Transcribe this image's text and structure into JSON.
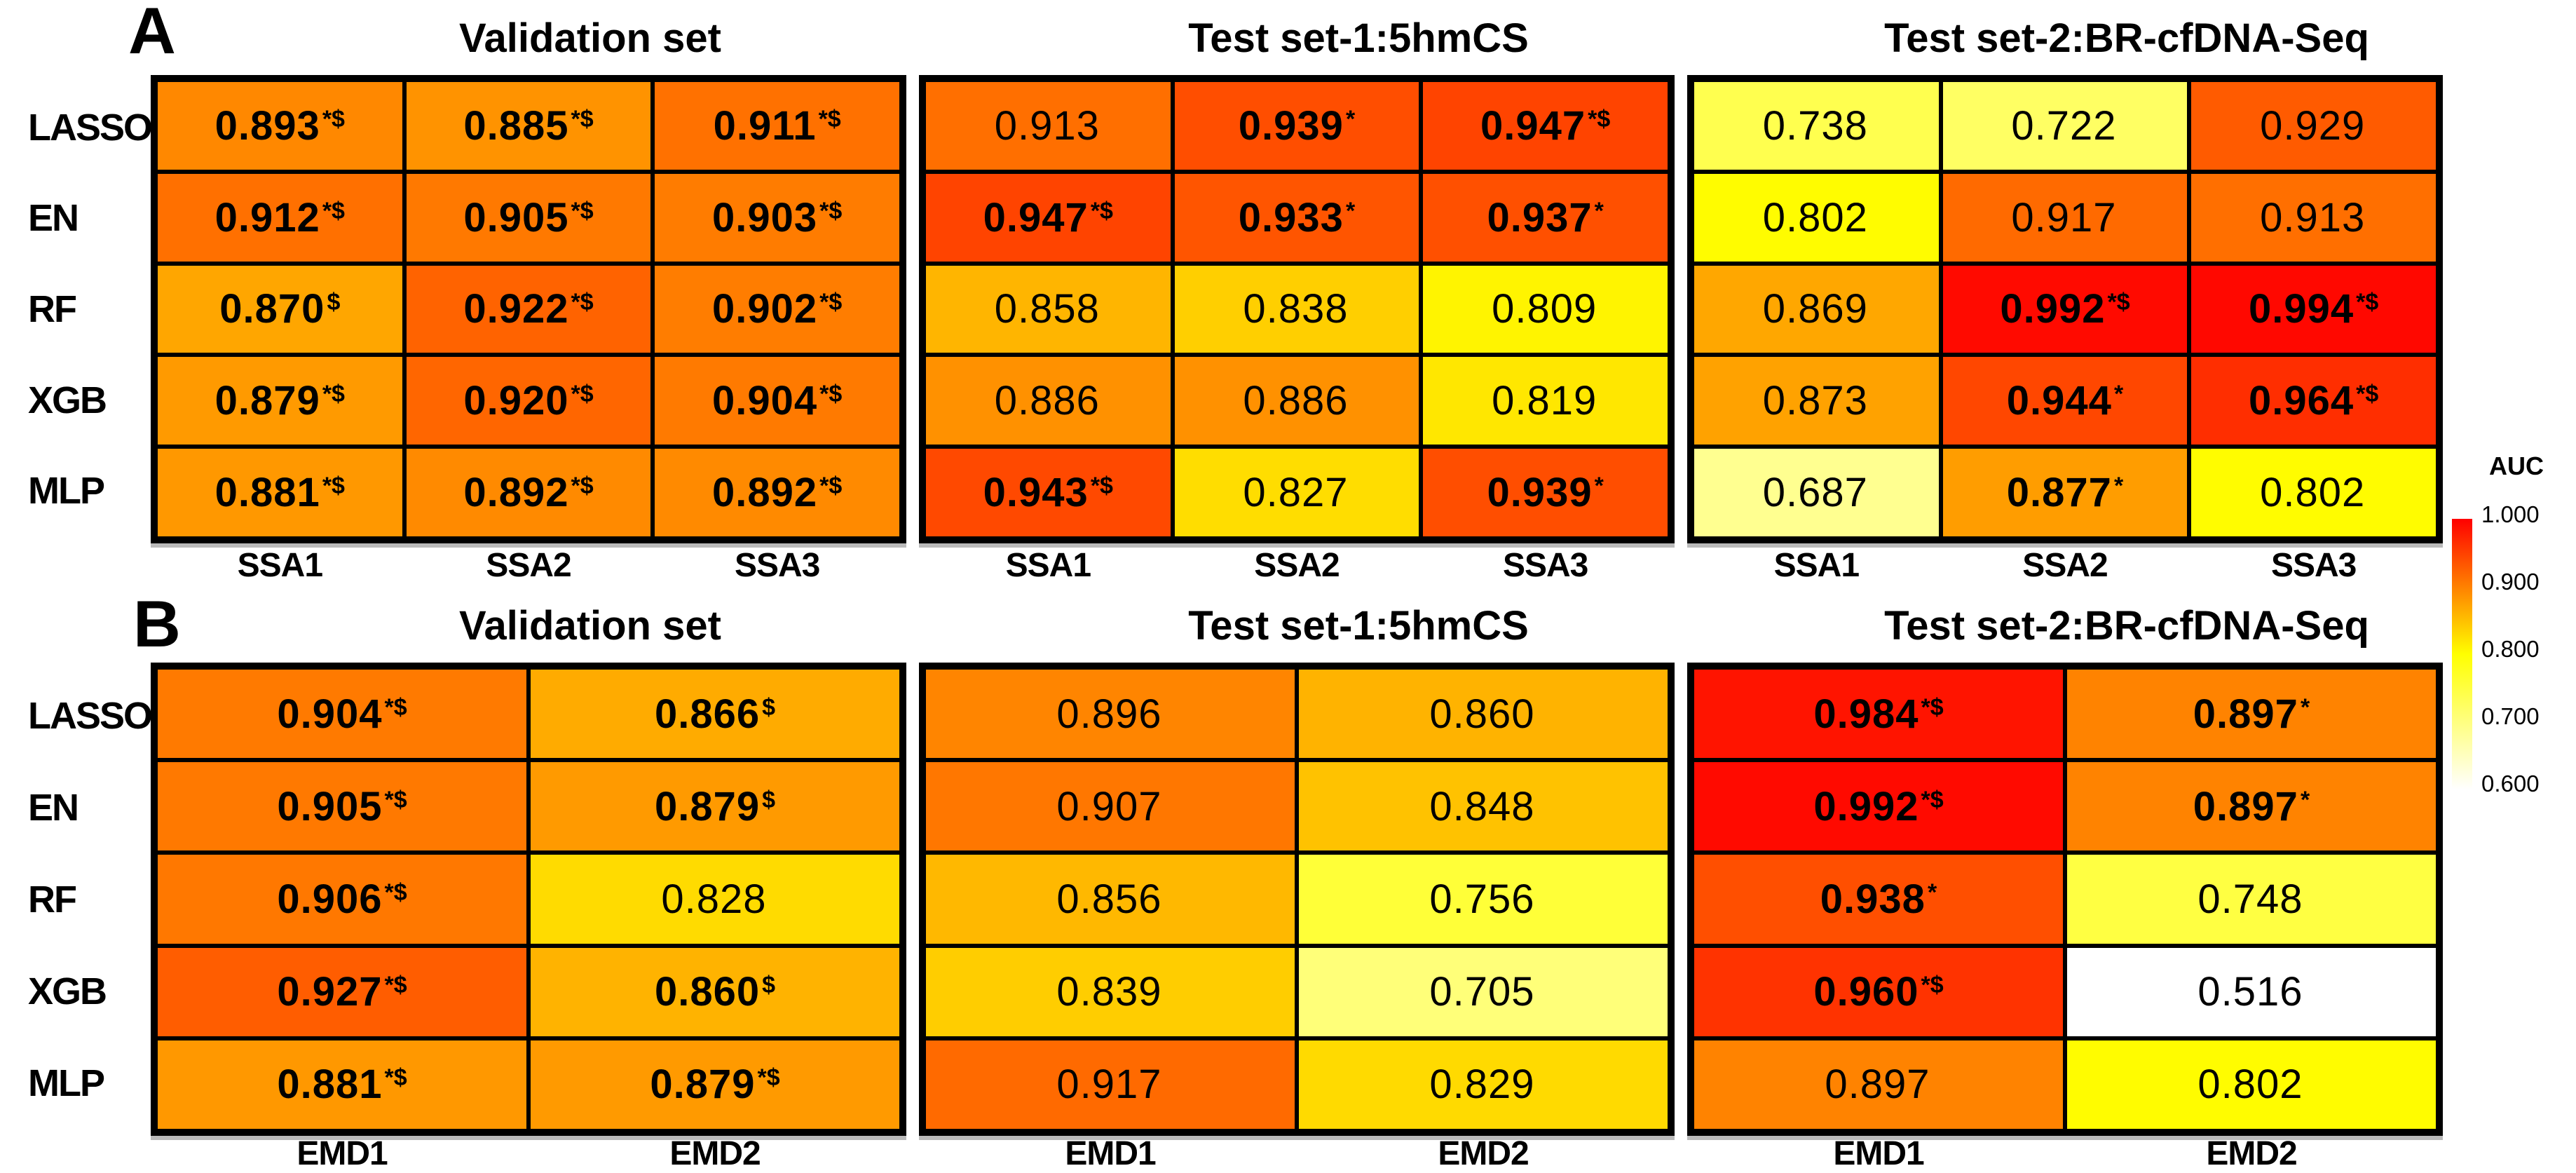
{
  "figure": {
    "panels": [
      {
        "label": "A",
        "row_labels": [
          "LASSO",
          "EN",
          "RF",
          "XGB",
          "MLP"
        ]
      },
      {
        "label": "B",
        "row_labels": [
          "LASSO",
          "EN",
          "RF",
          "XGB",
          "MLP"
        ]
      }
    ],
    "colorbar": {
      "title": "AUC",
      "ticks": [
        "1.000",
        "0.900",
        "0.800",
        "0.700",
        "0.600"
      ],
      "gradient": [
        "#FF0000",
        "#FF8000",
        "#FFFF00",
        "#FFFF80",
        "#FFFFFF"
      ],
      "range": [
        0.6,
        1.0
      ]
    }
  },
  "colormap": {
    "stops": [
      [
        1.0,
        "#FF0000"
      ],
      [
        0.8,
        "#FFFF00"
      ],
      [
        0.6,
        "#FFFFFF"
      ]
    ],
    "below_min_color": "#FFFFFF"
  },
  "chart_data": [
    {
      "type": "heatmap",
      "panel": "A",
      "title": "Validation set",
      "rows": [
        "LASSO",
        "EN",
        "RF",
        "XGB",
        "MLP"
      ],
      "columns": [
        "SSA1",
        "SSA2",
        "SSA3"
      ],
      "values": [
        [
          0.893,
          0.885,
          0.911
        ],
        [
          0.912,
          0.905,
          0.903
        ],
        [
          0.87,
          0.922,
          0.902
        ],
        [
          0.879,
          0.92,
          0.904
        ],
        [
          0.881,
          0.892,
          0.892
        ]
      ],
      "display": [
        [
          "0.893",
          "0.885",
          "0.911"
        ],
        [
          "0.912",
          "0.905",
          "0.903"
        ],
        [
          "0.870",
          "0.922",
          "0.902"
        ],
        [
          "0.879",
          "0.920",
          "0.904"
        ],
        [
          "0.881",
          "0.892",
          "0.892"
        ]
      ],
      "annotations": [
        [
          "*$",
          "*$",
          "*$"
        ],
        [
          "*$",
          "*$",
          "*$"
        ],
        [
          "$",
          "*$",
          "*$"
        ],
        [
          "*$",
          "*$",
          "*$"
        ],
        [
          "*$",
          "*$",
          "*$"
        ]
      ],
      "value_label": "AUC",
      "color_range": [
        0.6,
        1.0
      ]
    },
    {
      "type": "heatmap",
      "panel": "A",
      "title": "Test set-1:5hmCS",
      "rows": [
        "LASSO",
        "EN",
        "RF",
        "XGB",
        "MLP"
      ],
      "columns": [
        "SSA1",
        "SSA2",
        "SSA3"
      ],
      "values": [
        [
          0.913,
          0.939,
          0.947
        ],
        [
          0.947,
          0.933,
          0.937
        ],
        [
          0.858,
          0.838,
          0.809
        ],
        [
          0.886,
          0.886,
          0.819
        ],
        [
          0.943,
          0.827,
          0.939
        ]
      ],
      "display": [
        [
          "0.913",
          "0.939",
          "0.947"
        ],
        [
          "0.947",
          "0.933",
          "0.937"
        ],
        [
          "0.858",
          "0.838",
          "0.809"
        ],
        [
          "0.886",
          "0.886",
          "0.819"
        ],
        [
          "0.943",
          "0.827",
          "0.939"
        ]
      ],
      "annotations": [
        [
          "",
          "*",
          "*$"
        ],
        [
          "*$",
          "*",
          "*"
        ],
        [
          "",
          "",
          ""
        ],
        [
          "",
          "",
          ""
        ],
        [
          "*$",
          "",
          "*"
        ]
      ],
      "value_label": "AUC",
      "color_range": [
        0.6,
        1.0
      ]
    },
    {
      "type": "heatmap",
      "panel": "A",
      "title": "Test set-2:BR-cfDNA-Seq",
      "rows": [
        "LASSO",
        "EN",
        "RF",
        "XGB",
        "MLP"
      ],
      "columns": [
        "SSA1",
        "SSA2",
        "SSA3"
      ],
      "values": [
        [
          0.738,
          0.722,
          0.929
        ],
        [
          0.802,
          0.917,
          0.913
        ],
        [
          0.869,
          0.992,
          0.994
        ],
        [
          0.873,
          0.944,
          0.964
        ],
        [
          0.687,
          0.877,
          0.802
        ]
      ],
      "display": [
        [
          "0.738",
          "0.722",
          "0.929"
        ],
        [
          "0.802",
          "0.917",
          "0.913"
        ],
        [
          "0.869",
          "0.992",
          "0.994"
        ],
        [
          "0.873",
          "0.944",
          "0.964"
        ],
        [
          "0.687",
          "0.877",
          "0.802"
        ]
      ],
      "annotations": [
        [
          "",
          "",
          ""
        ],
        [
          "",
          "",
          ""
        ],
        [
          "",
          "*$",
          "*$"
        ],
        [
          "",
          "*",
          "*$"
        ],
        [
          "",
          "*",
          ""
        ]
      ],
      "value_label": "AUC",
      "color_range": [
        0.6,
        1.0
      ]
    },
    {
      "type": "heatmap",
      "panel": "B",
      "title": "Validation set",
      "rows": [
        "LASSO",
        "EN",
        "RF",
        "XGB",
        "MLP"
      ],
      "columns": [
        "EMD1",
        "EMD2"
      ],
      "values": [
        [
          0.904,
          0.866
        ],
        [
          0.905,
          0.879
        ],
        [
          0.906,
          0.828
        ],
        [
          0.927,
          0.86
        ],
        [
          0.881,
          0.879
        ]
      ],
      "display": [
        [
          "0.904",
          "0.866"
        ],
        [
          "0.905",
          "0.879"
        ],
        [
          "0.906",
          "0.828"
        ],
        [
          "0.927",
          "0.860"
        ],
        [
          "0.881",
          "0.879"
        ]
      ],
      "annotations": [
        [
          "*$",
          "$"
        ],
        [
          "*$",
          "$"
        ],
        [
          "*$",
          ""
        ],
        [
          "*$",
          "$"
        ],
        [
          "*$",
          "*$"
        ]
      ],
      "value_label": "AUC",
      "color_range": [
        0.6,
        1.0
      ]
    },
    {
      "type": "heatmap",
      "panel": "B",
      "title": "Test set-1:5hmCS",
      "rows": [
        "LASSO",
        "EN",
        "RF",
        "XGB",
        "MLP"
      ],
      "columns": [
        "EMD1",
        "EMD2"
      ],
      "values": [
        [
          0.896,
          0.86
        ],
        [
          0.907,
          0.848
        ],
        [
          0.856,
          0.756
        ],
        [
          0.839,
          0.705
        ],
        [
          0.917,
          0.829
        ]
      ],
      "display": [
        [
          "0.896",
          "0.860"
        ],
        [
          "0.907",
          "0.848"
        ],
        [
          "0.856",
          "0.756"
        ],
        [
          "0.839",
          "0.705"
        ],
        [
          "0.917",
          "0.829"
        ]
      ],
      "annotations": [
        [
          "",
          ""
        ],
        [
          "",
          ""
        ],
        [
          "",
          ""
        ],
        [
          "",
          ""
        ],
        [
          "",
          ""
        ]
      ],
      "value_label": "AUC",
      "color_range": [
        0.6,
        1.0
      ]
    },
    {
      "type": "heatmap",
      "panel": "B",
      "title": "Test set-2:BR-cfDNA-Seq",
      "rows": [
        "LASSO",
        "EN",
        "RF",
        "XGB",
        "MLP"
      ],
      "columns": [
        "EMD1",
        "EMD2"
      ],
      "values": [
        [
          0.984,
          0.897
        ],
        [
          0.992,
          0.897
        ],
        [
          0.938,
          0.748
        ],
        [
          0.96,
          0.516
        ],
        [
          0.897,
          0.802
        ]
      ],
      "display": [
        [
          "0.984",
          "0.897"
        ],
        [
          "0.992",
          "0.897"
        ],
        [
          "0.938",
          "0.748"
        ],
        [
          "0.960",
          "0.516"
        ],
        [
          "0.897",
          "0.802"
        ]
      ],
      "annotations": [
        [
          "*$",
          "*"
        ],
        [
          "*$",
          "*"
        ],
        [
          "*",
          ""
        ],
        [
          "*$",
          ""
        ],
        [
          "",
          ""
        ]
      ],
      "value_label": "AUC",
      "color_range": [
        0.6,
        1.0
      ]
    }
  ]
}
